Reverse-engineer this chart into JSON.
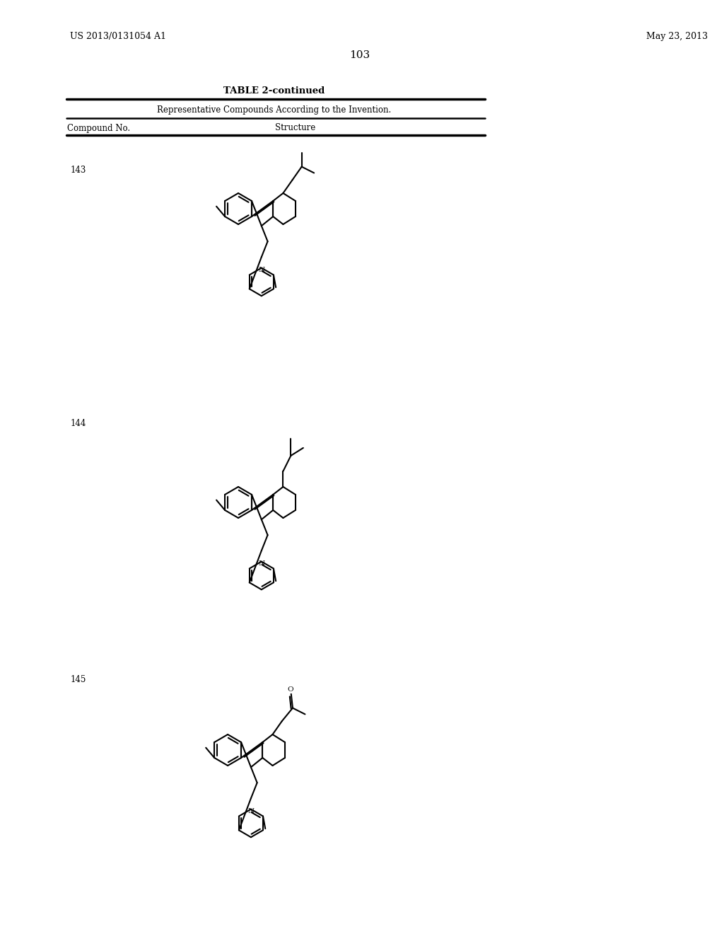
{
  "page_number": "103",
  "patent_left": "US 2013/0131054 A1",
  "patent_right": "May 23, 2013",
  "table_title": "TABLE 2-continued",
  "table_subtitle": "Representative Compounds According to the Invention.",
  "col1_header": "Compound No.",
  "col2_header": "Structure",
  "compound_numbers": [
    "143",
    "144",
    "145"
  ],
  "background_color": "#ffffff"
}
